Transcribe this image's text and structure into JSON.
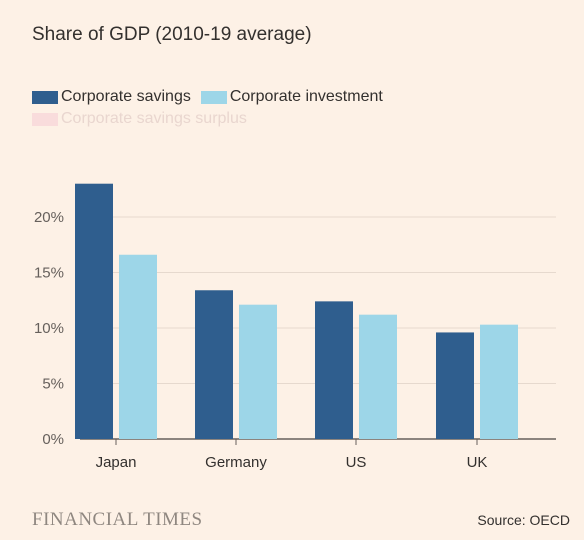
{
  "title": "Share of GDP (2010-19 average)",
  "legend": [
    {
      "label": "Corporate savings",
      "color": "#2f5e8e"
    },
    {
      "label": "Corporate investment",
      "color": "#9dd6e8"
    },
    {
      "label": "Corporate savings surplus",
      "color": "#f6d1d4"
    }
  ],
  "brand": "FINANCIAL TIMES",
  "source": "Source: OECD",
  "chart_data": {
    "type": "bar",
    "categories": [
      "Japan",
      "Germany",
      "US",
      "UK"
    ],
    "series": [
      {
        "name": "Corporate savings",
        "values": [
          23.0,
          13.4,
          12.4,
          9.6
        ],
        "color": "#2f5e8e"
      },
      {
        "name": "Corporate investment",
        "values": [
          16.6,
          12.1,
          11.2,
          10.3
        ],
        "color": "#9dd6e8"
      }
    ],
    "yticks": [
      "0%",
      "5%",
      "10%",
      "15%",
      "20%"
    ],
    "ylim": [
      0,
      25
    ],
    "grid": true
  }
}
